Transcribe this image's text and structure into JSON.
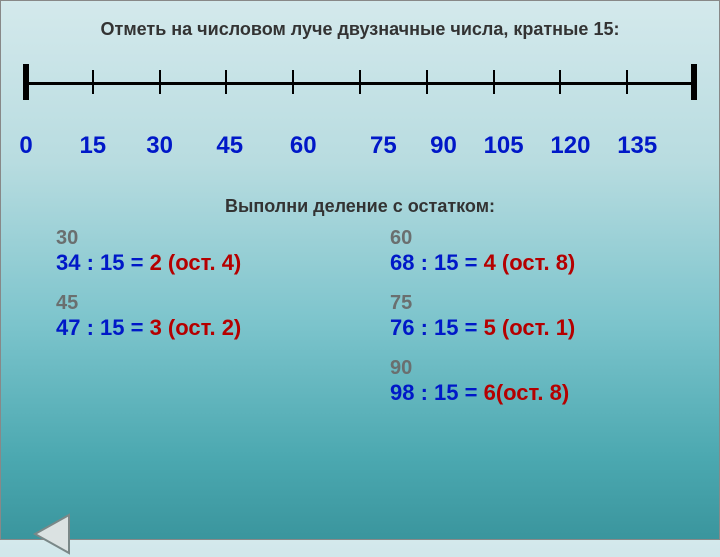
{
  "title": "Отметь на числовом луче двузначные числа, кратные 15:",
  "subtitle": "Выполни деление с остатком:",
  "numberline": {
    "line_color": "#000000",
    "tick_positions_pct": [
      0,
      10,
      20,
      30,
      40,
      50,
      60,
      70,
      80,
      90,
      100
    ],
    "tick_style": [
      "major",
      "minor",
      "minor",
      "minor",
      "minor",
      "minor",
      "minor",
      "minor",
      "minor",
      "minor",
      "major"
    ],
    "labels": [
      {
        "text": "0",
        "pos_pct": 0
      },
      {
        "text": "15",
        "pos_pct": 10
      },
      {
        "text": "30",
        "pos_pct": 20
      },
      {
        "text": "45",
        "pos_pct": 30.5
      },
      {
        "text": "60",
        "pos_pct": 41.5
      },
      {
        "text": "75",
        "pos_pct": 53.5
      },
      {
        "text": "90",
        "pos_pct": 62.5
      },
      {
        "text": "105",
        "pos_pct": 71.5
      },
      {
        "text": "120",
        "pos_pct": 81.5
      },
      {
        "text": "135",
        "pos_pct": 91.5
      }
    ],
    "label_color": "#0018c8"
  },
  "problems": {
    "aux_color": "#6a6f6f",
    "eq_color": "#0018c8",
    "ans_color": "#b50000",
    "rows": [
      {
        "left": {
          "aux": "30",
          "lhs": "34 : 15 =",
          "ans": "2 (ост. 4)"
        },
        "right": {
          "aux": "60",
          "lhs": "68 : 15 =",
          "ans": " 4 (ост. 8)"
        }
      },
      {
        "left": {
          "aux": "45",
          "lhs": "47 : 15 =",
          "ans": " 3 (ост. 2)"
        },
        "right": {
          "aux": "75",
          "lhs": "76 : 15 =",
          "ans": " 5 (ост. 1)"
        }
      },
      {
        "left": {
          "aux": "",
          "lhs": "",
          "ans": ""
        },
        "right": {
          "aux": "90",
          "lhs": "98 : 15 =",
          "ans": "  6(ост. 8)"
        }
      }
    ]
  },
  "nav": {
    "prev_icon": "triangle-left",
    "fill": "#dbe2e2",
    "stroke": "#7a8888"
  }
}
